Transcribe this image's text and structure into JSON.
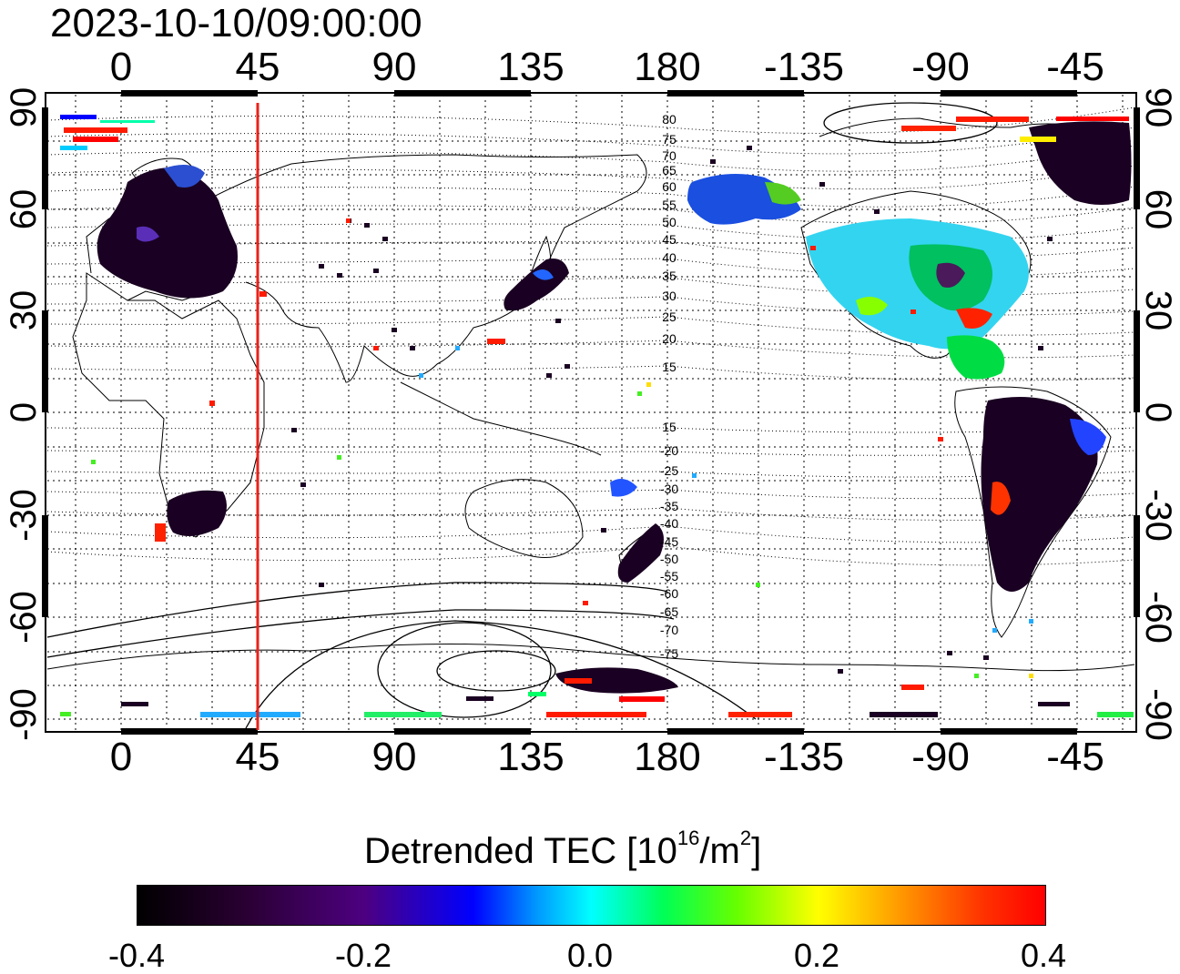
{
  "title": "2023-10-10/09:00:00",
  "lon_ticks": [
    "0",
    "45",
    "90",
    "135",
    "180",
    "-135",
    "-90",
    "-45"
  ],
  "lat_ticks": [
    "90",
    "60",
    "30",
    "0",
    "-30",
    "-60",
    "-90"
  ],
  "contour_labels_north": [
    "80",
    "75",
    "70",
    "65",
    "60",
    "55",
    "50",
    "45",
    "40",
    "35",
    "30",
    "25",
    "20",
    "15"
  ],
  "contour_labels_south": [
    "15",
    "-20",
    "-25",
    "-30",
    "-35",
    "-40",
    "-45",
    "-50",
    "-55",
    "-60",
    "-65",
    "-70",
    "-75"
  ],
  "marker_line": {
    "longitude": 45,
    "color": "#e8231b"
  },
  "colorbar": {
    "title_main": "Detrended TEC  [10",
    "title_exp": "16",
    "title_unit": "/m",
    "title_unit_exp": "2",
    "title_end": "]",
    "ticks": [
      "-0.4",
      "-0.2",
      "0.0",
      "0.2",
      "0.4"
    ],
    "range": [
      -0.4,
      0.4
    ]
  },
  "colors": {
    "low": "#000000",
    "mid_low": "#0000ff",
    "mid": "#00ffff",
    "mid_high": "#ffff00",
    "high": "#ff0000"
  }
}
